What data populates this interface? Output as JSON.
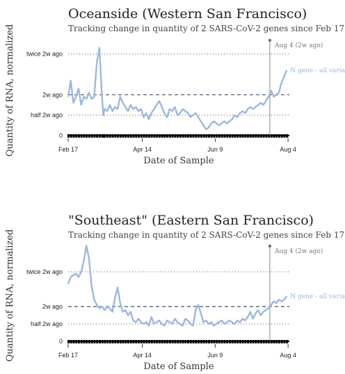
{
  "chart_data": [
    {
      "type": "line",
      "title": "Oceanside (Western San Francisco)",
      "subtitle": "Tracking change in quantity of 2 SARS-CoV-2 genes since Feb 17",
      "ylabel": "Quantity of RNA, normalized",
      "xlabel": "Date of Sample",
      "x_ticks": [
        "Feb 17",
        "Apr 14",
        "Jun 9",
        "Aug 4"
      ],
      "y_ticks": [
        "0",
        "half 2w ago",
        "2w ago",
        "twice 2w ago"
      ],
      "y_tick_values": [
        0,
        0.5,
        1,
        2
      ],
      "ylim": [
        0,
        2.3
      ],
      "xlim": [
        0,
        170
      ],
      "x_tick_values": [
        0,
        57,
        113,
        169
      ],
      "annotation": "Aug 4 (2w ago)",
      "annotation_x": 155,
      "series": [
        {
          "name": "N gene - all variants",
          "color": "#9db7dc",
          "x": [
            0,
            2,
            4,
            6,
            8,
            10,
            12,
            14,
            16,
            18,
            20,
            22,
            24,
            26,
            27,
            28,
            30,
            32,
            34,
            36,
            38,
            40,
            42,
            44,
            46,
            48,
            50,
            52,
            54,
            56,
            58,
            60,
            62,
            64,
            66,
            68,
            70,
            72,
            74,
            76,
            78,
            80,
            82,
            84,
            86,
            88,
            90,
            92,
            94,
            96,
            98,
            100,
            102,
            104,
            106,
            108,
            110,
            112,
            114,
            116,
            118,
            120,
            122,
            124,
            126,
            128,
            130,
            132,
            134,
            136,
            138,
            140,
            142,
            144,
            146,
            148,
            150,
            152,
            154,
            156,
            158,
            160,
            162,
            164,
            166,
            168
          ],
          "values": [
            0.95,
            1.35,
            0.8,
            0.95,
            1.15,
            0.75,
            0.95,
            0.9,
            1.05,
            0.9,
            0.95,
            1.8,
            2.15,
            0.95,
            0.5,
            0.65,
            0.6,
            0.75,
            0.6,
            0.7,
            0.65,
            0.95,
            0.8,
            0.7,
            0.6,
            0.75,
            0.65,
            0.7,
            0.6,
            0.65,
            0.45,
            0.55,
            0.4,
            0.55,
            0.65,
            0.75,
            0.85,
            0.7,
            0.55,
            0.45,
            0.65,
            0.6,
            0.7,
            0.5,
            0.55,
            0.65,
            0.6,
            0.55,
            0.45,
            0.5,
            0.55,
            0.45,
            0.35,
            0.25,
            0.15,
            0.2,
            0.3,
            0.35,
            0.3,
            0.25,
            0.3,
            0.35,
            0.3,
            0.35,
            0.4,
            0.5,
            0.45,
            0.55,
            0.6,
            0.55,
            0.65,
            0.7,
            0.65,
            0.7,
            0.75,
            0.8,
            0.75,
            0.85,
            0.95,
            1.1,
            0.95,
            1.0,
            1.05,
            1.3,
            1.45,
            1.6
          ]
        }
      ]
    },
    {
      "type": "line",
      "title": "\"Southeast\" (Eastern San Francisco)",
      "subtitle": "Tracking change in quantity of 2 SARS-CoV-2 genes since Feb 17",
      "ylabel": "Quantity of RNA, normalized",
      "xlabel": "Date of Sample",
      "x_ticks": [
        "Feb 17",
        "Apr 14",
        "Jun 9",
        "Aug 4"
      ],
      "y_ticks": [
        "0",
        "half 2w ago",
        "2w ago",
        "twice 2w ago"
      ],
      "y_tick_values": [
        0,
        0.5,
        1,
        2
      ],
      "ylim": [
        0,
        2.7
      ],
      "xlim": [
        0,
        170
      ],
      "x_tick_values": [
        0,
        57,
        113,
        169
      ],
      "annotation": "Aug 4 (2w ago)",
      "annotation_x": 155,
      "series": [
        {
          "name": "N gene - all variants",
          "color": "#9db7dc",
          "x": [
            0,
            2,
            4,
            6,
            8,
            10,
            12,
            14,
            16,
            18,
            20,
            22,
            24,
            26,
            28,
            30,
            32,
            34,
            36,
            38,
            40,
            42,
            44,
            46,
            48,
            50,
            52,
            54,
            56,
            58,
            60,
            62,
            64,
            66,
            68,
            70,
            72,
            74,
            76,
            78,
            80,
            82,
            84,
            86,
            88,
            90,
            92,
            94,
            96,
            98,
            100,
            102,
            104,
            106,
            108,
            110,
            112,
            114,
            116,
            118,
            120,
            122,
            124,
            126,
            128,
            130,
            132,
            134,
            136,
            138,
            140,
            142,
            144,
            146,
            148,
            150,
            152,
            154,
            156,
            158,
            160,
            162,
            164,
            166,
            168
          ],
          "values": [
            1.65,
            1.85,
            1.9,
            1.95,
            1.85,
            2.0,
            2.3,
            2.75,
            2.4,
            1.6,
            1.2,
            1.05,
            0.95,
            1.0,
            0.9,
            1.0,
            0.95,
            0.85,
            1.25,
            1.55,
            1.1,
            0.85,
            0.9,
            0.75,
            0.85,
            0.6,
            0.55,
            0.65,
            0.55,
            0.5,
            0.55,
            0.45,
            0.7,
            0.5,
            0.55,
            0.6,
            0.5,
            0.45,
            0.6,
            0.55,
            0.5,
            0.65,
            0.55,
            0.5,
            0.45,
            0.65,
            0.6,
            0.5,
            0.45,
            0.9,
            1.05,
            0.8,
            0.55,
            0.6,
            0.5,
            0.55,
            0.45,
            0.5,
            0.55,
            0.6,
            0.5,
            0.55,
            0.6,
            0.55,
            0.5,
            0.6,
            0.55,
            0.65,
            0.6,
            0.7,
            0.85,
            0.65,
            0.8,
            0.9,
            0.75,
            0.85,
            0.9,
            0.95,
            1.05,
            1.15,
            1.1,
            1.2,
            1.15,
            1.2,
            1.3
          ]
        }
      ]
    }
  ]
}
